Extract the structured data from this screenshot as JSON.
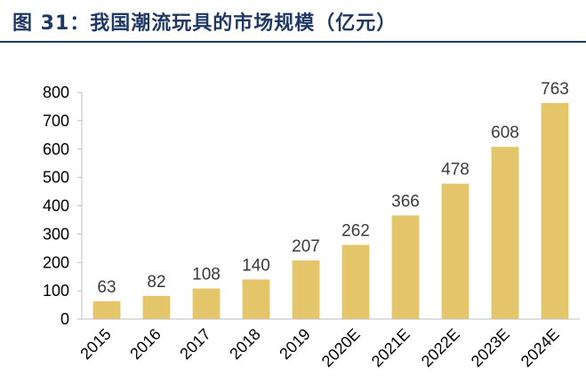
{
  "header": {
    "title": "图 31：我国潮流玩具的市场规模（亿元）"
  },
  "colors": {
    "bar": "#E5C56A",
    "title": "#1F3864",
    "axis": "#BFBFBF"
  },
  "chart_data": {
    "type": "bar",
    "title": "图 31：我国潮流玩具的市场规模（亿元）",
    "categories": [
      "2015",
      "2016",
      "2017",
      "2018",
      "2019",
      "2020E",
      "2021E",
      "2022E",
      "2023E",
      "2024E"
    ],
    "values": [
      63,
      82,
      108,
      140,
      207,
      262,
      366,
      478,
      608,
      763
    ],
    "yticks": [
      0,
      100,
      200,
      300,
      400,
      500,
      600,
      700,
      800
    ],
    "ylim": [
      0,
      800
    ],
    "xlabel": "",
    "ylabel": "",
    "grid": false,
    "legend": "none"
  }
}
